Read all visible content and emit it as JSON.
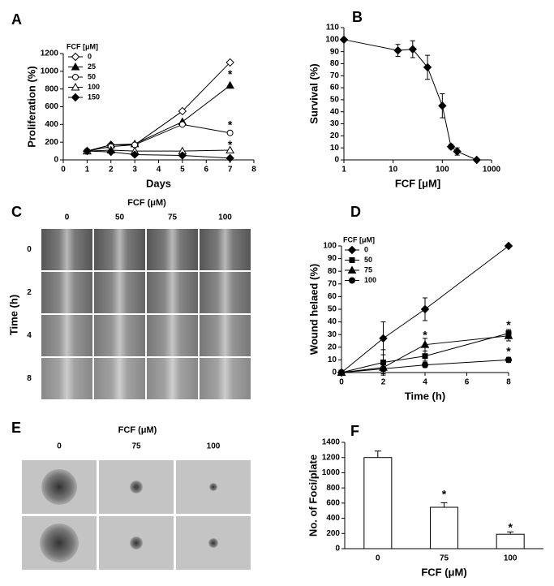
{
  "chart_data": [
    {
      "type": "line",
      "panel": "A",
      "xlabel": "Days",
      "ylabel": "Proliferation (%)",
      "legend_title": "FCF [μM]",
      "legend": "upper left",
      "x": [
        1,
        2,
        3,
        5,
        7
      ],
      "xlim": [
        0,
        8
      ],
      "xticks": [
        0,
        1,
        2,
        3,
        4,
        5,
        6,
        7,
        8
      ],
      "ylim": [
        0,
        1200
      ],
      "yticks": [
        0,
        200,
        400,
        600,
        800,
        1000,
        1200
      ],
      "series": [
        {
          "name": "0",
          "color": "#000000",
          "marker": "diamond-open",
          "values": [
            100,
            170,
            170,
            550,
            1100
          ]
        },
        {
          "name": "25",
          "color": "#000000",
          "marker": "triangle-filled",
          "values": [
            100,
            170,
            180,
            430,
            840
          ]
        },
        {
          "name": "50",
          "color": "#000000",
          "marker": "circle-open",
          "values": [
            100,
            150,
            170,
            400,
            305
          ]
        },
        {
          "name": "100",
          "color": "#000000",
          "marker": "triangle-open",
          "values": [
            100,
            110,
            100,
            100,
            110
          ]
        },
        {
          "name": "150",
          "color": "#000000",
          "marker": "diamond-filled",
          "values": [
            100,
            90,
            60,
            50,
            20
          ]
        }
      ],
      "annotations": [
        {
          "text": "*",
          "x": 7,
          "y": 960
        },
        {
          "text": "*",
          "x": 7,
          "y": 385
        },
        {
          "text": "*",
          "x": 7,
          "y": 160
        }
      ]
    },
    {
      "type": "line",
      "panel": "B",
      "xlabel": "FCF [μM]",
      "ylabel": "Survival (%)",
      "xscale": "log",
      "x": [
        1,
        12.5,
        25,
        50,
        100,
        150,
        200,
        500
      ],
      "xlim": [
        1,
        1000
      ],
      "xticks": [
        1,
        10,
        100,
        1000
      ],
      "ylim": [
        0,
        110
      ],
      "yticks": [
        0,
        10,
        20,
        30,
        40,
        50,
        60,
        70,
        80,
        90,
        100,
        110
      ],
      "series": [
        {
          "name": "survival",
          "color": "#000000",
          "marker": "diamond-filled",
          "values": [
            100,
            91,
            92,
            77,
            45,
            11,
            7,
            0
          ],
          "errors": [
            0,
            5,
            7,
            10,
            10,
            2,
            3,
            0
          ]
        }
      ]
    },
    {
      "type": "image-grid",
      "panel": "C",
      "title": "FCF (μM)",
      "ylabel": "Time (h)",
      "columns": [
        "0",
        "50",
        "75",
        "100"
      ],
      "rows": [
        "0",
        "2",
        "4",
        "8"
      ]
    },
    {
      "type": "line",
      "panel": "D",
      "xlabel": "Time (h)",
      "ylabel": "Wound helaed (%)",
      "legend_title": "FCF [μM]",
      "legend": "upper left",
      "x": [
        0,
        2,
        4,
        8
      ],
      "xlim": [
        0,
        8
      ],
      "xticks": [
        0,
        2,
        4,
        6,
        8
      ],
      "ylim": [
        0,
        100
      ],
      "yticks": [
        0,
        10,
        20,
        30,
        40,
        50,
        60,
        70,
        80,
        90,
        100
      ],
      "series": [
        {
          "name": "0",
          "color": "#000000",
          "marker": "diamond-filled",
          "values": [
            0,
            27,
            50,
            100
          ],
          "errors": [
            0,
            13,
            9,
            0
          ]
        },
        {
          "name": "50",
          "color": "#000000",
          "marker": "square-filled",
          "values": [
            0,
            8,
            13,
            31
          ],
          "errors": [
            0,
            10,
            4,
            3
          ]
        },
        {
          "name": "75",
          "color": "#000000",
          "marker": "triangle-filled",
          "values": [
            0,
            4,
            22,
            29
          ],
          "errors": [
            0,
            5,
            5,
            4
          ]
        },
        {
          "name": "100",
          "color": "#000000",
          "marker": "circle-filled",
          "values": [
            0,
            3,
            6,
            10
          ],
          "errors": [
            0,
            2,
            2,
            2
          ]
        }
      ],
      "annotations": [
        {
          "text": "*",
          "x": 4,
          "y": 29
        },
        {
          "text": "*",
          "x": 8,
          "y": 37
        },
        {
          "text": "*",
          "x": 8,
          "y": 16
        }
      ]
    },
    {
      "type": "image-grid",
      "panel": "E",
      "title": "FCF (μM)",
      "columns": [
        "0",
        "75",
        "100"
      ],
      "rows": [
        null,
        null
      ]
    },
    {
      "type": "bar",
      "panel": "F",
      "xlabel": "FCF (μM)",
      "ylabel": "No. of Foci/plate",
      "color": "#ffffff",
      "categories": [
        "0",
        "75",
        "100"
      ],
      "values": [
        1200,
        545,
        190
      ],
      "errors": [
        85,
        60,
        30
      ],
      "ylim": [
        0,
        1400
      ],
      "yticks": [
        0,
        200,
        400,
        600,
        800,
        1000,
        1200,
        1400
      ],
      "annotations": [
        {
          "text": "*",
          "x": "75",
          "y": 705
        },
        {
          "text": "*",
          "x": "100",
          "y": 267
        }
      ]
    }
  ]
}
